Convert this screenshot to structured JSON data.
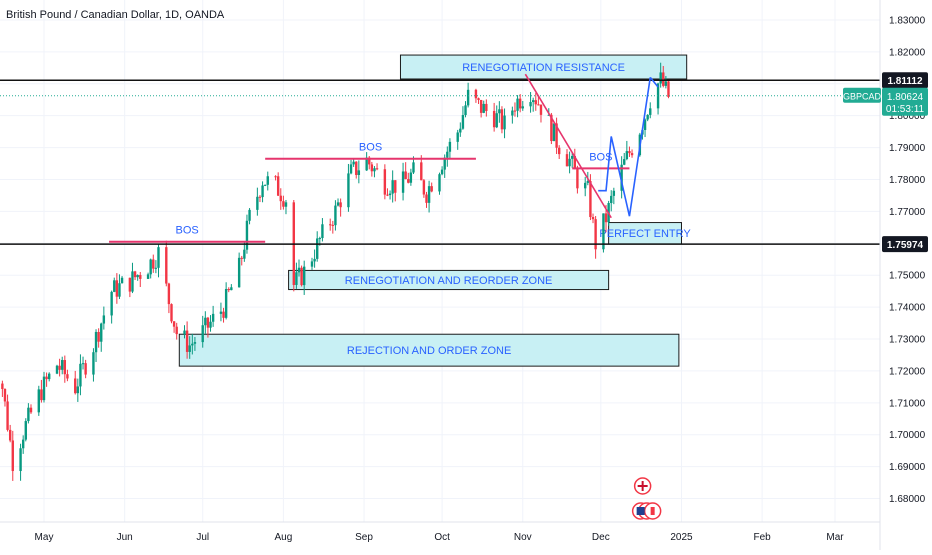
{
  "header": {
    "title": "British Pound / Canadian Dollar, 1D, OANDA"
  },
  "colors": {
    "up": "#089981",
    "down": "#f23645",
    "zone_fill": "#c8f0f4",
    "trend_line": "#e6356d",
    "blue": "#2962ff",
    "price_badge": "#22ab94",
    "grid": "#f0f3fa",
    "axis_text": "#131722"
  },
  "chart_data": {
    "type": "candlestick",
    "symbol": "GBPCAD",
    "timeframe": "1D",
    "ylim": [
      1.675,
      1.835
    ],
    "yticks": [
      "1.83000",
      "1.82000",
      "1.81000",
      "1.80000",
      "1.79000",
      "1.78000",
      "1.77000",
      "1.76000",
      "1.75000",
      "1.74000",
      "1.73000",
      "1.72000",
      "1.71000",
      "1.70000",
      "1.69000",
      "1.68000"
    ],
    "xticks": [
      {
        "label": "May",
        "date": "2024-05-01"
      },
      {
        "label": "Jun",
        "date": "2024-06-01"
      },
      {
        "label": "Jul",
        "date": "2024-07-01"
      },
      {
        "label": "Aug",
        "date": "2024-08-01"
      },
      {
        "label": "Sep",
        "date": "2024-09-01"
      },
      {
        "label": "Oct",
        "date": "2024-10-01"
      },
      {
        "label": "Nov",
        "date": "2024-11-01"
      },
      {
        "label": "Dec",
        "date": "2024-12-01"
      },
      {
        "label": "2025",
        "date": "2025-01-01"
      },
      {
        "label": "Feb",
        "date": "2025-02-01"
      },
      {
        "label": "Mar",
        "date": "2025-03-01"
      }
    ],
    "path_points": [
      [
        "2024-04-10",
        1.722
      ],
      [
        "2024-04-15",
        1.715
      ],
      [
        "2024-04-19",
        1.692
      ],
      [
        "2024-04-24",
        1.703
      ],
      [
        "2024-04-30",
        1.714
      ],
      [
        "2024-05-06",
        1.722
      ],
      [
        "2024-05-13",
        1.715
      ],
      [
        "2024-05-20",
        1.728
      ],
      [
        "2024-05-27",
        1.745
      ],
      [
        "2024-06-03",
        1.748
      ],
      [
        "2024-06-10",
        1.753
      ],
      [
        "2024-06-14",
        1.757
      ],
      [
        "2024-06-18",
        1.742
      ],
      [
        "2024-06-21",
        1.732
      ],
      [
        "2024-06-26",
        1.728
      ],
      [
        "2024-07-02",
        1.733
      ],
      [
        "2024-07-09",
        1.74
      ],
      [
        "2024-07-15",
        1.752
      ],
      [
        "2024-07-19",
        1.768
      ],
      [
        "2024-07-24",
        1.78
      ],
      [
        "2024-07-29",
        1.778
      ],
      [
        "2024-08-02",
        1.774
      ],
      [
        "2024-08-05",
        1.747
      ],
      [
        "2024-08-09",
        1.751
      ],
      [
        "2024-08-15",
        1.761
      ],
      [
        "2024-08-21",
        1.77
      ],
      [
        "2024-08-27",
        1.782
      ],
      [
        "2024-09-02",
        1.786
      ],
      [
        "2024-09-09",
        1.779
      ],
      [
        "2024-09-15",
        1.778
      ],
      [
        "2024-09-20",
        1.782
      ],
      [
        "2024-09-25",
        1.776
      ],
      [
        "2024-10-01",
        1.786
      ],
      [
        "2024-10-07",
        1.795
      ],
      [
        "2024-10-11",
        1.806
      ],
      [
        "2024-10-15",
        1.803
      ],
      [
        "2024-10-21",
        1.8
      ],
      [
        "2024-10-25",
        1.797
      ],
      [
        "2024-10-29",
        1.804
      ],
      [
        "2024-11-04",
        1.808
      ],
      [
        "2024-11-08",
        1.803
      ],
      [
        "2024-11-14",
        1.792
      ],
      [
        "2024-11-19",
        1.786
      ],
      [
        "2024-11-22",
        1.78
      ],
      [
        "2024-11-26",
        1.776
      ],
      [
        "2024-11-29",
        1.76
      ],
      [
        "2024-12-03",
        1.768
      ],
      [
        "2024-12-06",
        1.776
      ],
      [
        "2024-12-10",
        1.785
      ],
      [
        "2024-12-14",
        1.792
      ],
      [
        "2024-12-18",
        1.8
      ],
      [
        "2024-12-21",
        1.808
      ],
      [
        "2024-12-24",
        1.811
      ],
      [
        "2024-12-27",
        1.806
      ]
    ],
    "horizontal_lines": [
      {
        "price": 1.81112,
        "label": "1.81112"
      },
      {
        "price": 1.75974,
        "label": "1.75974"
      }
    ],
    "current_price": {
      "symbol": "GBPCAD",
      "price": 1.80624,
      "label": "1.80624",
      "countdown": "01:53:11"
    },
    "zones": [
      {
        "label": "RENEGOTIATION RESISTANCE",
        "start": "2024-09-15",
        "end": "2025-01-03",
        "top": 1.819,
        "bottom": 1.8115
      },
      {
        "label": "PERFECT ENTRY",
        "start": "2024-12-04",
        "end": "2025-01-01",
        "top": 1.7665,
        "bottom": 1.7598
      },
      {
        "label": "RENEGOTIATION AND REORDER ZONE",
        "start": "2024-08-03",
        "end": "2024-12-04",
        "top": 1.7515,
        "bottom": 1.7455
      },
      {
        "label": "REJECTION AND ORDER ZONE",
        "start": "2024-06-22",
        "end": "2024-12-31",
        "top": 1.7315,
        "bottom": 1.7215
      }
    ],
    "bos_lines": [
      {
        "label": "BOS",
        "start": "2024-05-26",
        "end": "2024-07-25",
        "price": 1.7605
      },
      {
        "label": "BOS",
        "start": "2024-07-25",
        "end": "2024-10-14",
        "price": 1.7865
      },
      {
        "label": "BOS",
        "start": "2024-11-20",
        "end": "2024-12-12",
        "price": 1.7835
      }
    ],
    "trend_line": {
      "start": [
        "2024-11-02",
        1.813
      ],
      "end": [
        "2024-12-05",
        1.768
      ]
    },
    "projection": {
      "points": [
        [
          "2024-11-30",
          1.7765
        ],
        [
          "2024-12-03",
          1.7765
        ],
        [
          "2024-12-05",
          1.7935
        ],
        [
          "2024-12-12",
          1.7685
        ],
        [
          "2024-12-20",
          1.812
        ]
      ],
      "arrow_to": [
        "2024-12-23",
        1.809
      ]
    }
  }
}
